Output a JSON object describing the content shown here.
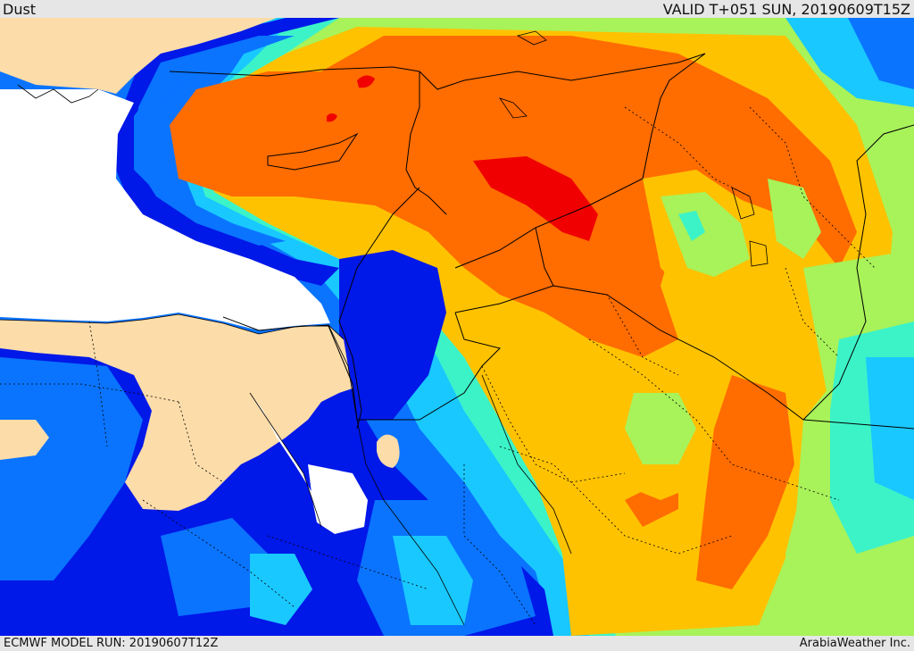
{
  "header": {
    "product": "Dust",
    "valid": "VALID T+051 SUN, 20190609T15Z"
  },
  "footer": {
    "model_run": "ECMWF MODEL RUN: 20190607T12Z",
    "credit": "ArabiaWeather Inc."
  },
  "map": {
    "variable": "dust",
    "colors": {
      "land": "#fcdca9",
      "sea": "#ffffff",
      "level_1": "#0018e8",
      "level_2": "#0a74ff",
      "level_3": "#19c8ff",
      "level_4": "#3cf3c8",
      "level_5": "#a8f25a",
      "level_6": "#e8f23c",
      "level_7": "#ffc200",
      "level_8": "#ff6c00",
      "level_9": "#f00000",
      "border": "#000000"
    }
  }
}
